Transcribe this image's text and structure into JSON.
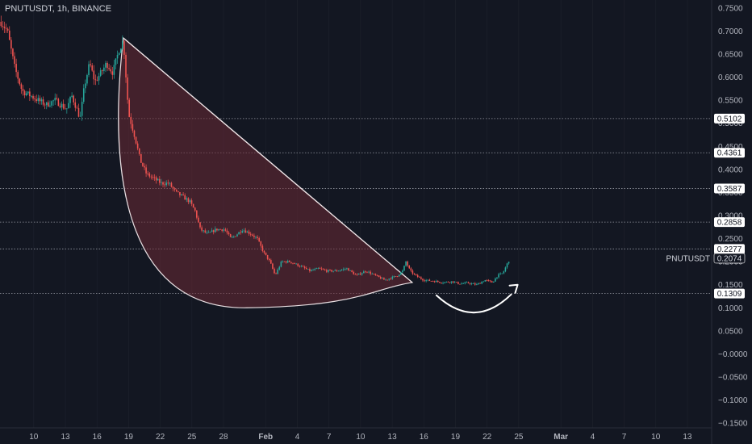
{
  "header": {
    "title": "PNUTUSDT, 1h, BINANCE"
  },
  "colors": {
    "background": "#131722",
    "up": "#26a69a",
    "down": "#ef5350",
    "cup_fill": "#6b2a35",
    "cup_stroke": "#e8dfe2",
    "grid": "#2a2e39",
    "level_line": "#9598a1"
  },
  "chart_data": {
    "type": "candlestick",
    "symbol": "PNUTUSDT",
    "interval": "1h",
    "exchange": "BINANCE",
    "y_ticks": [
      "0.7500",
      "0.7000",
      "0.6500",
      "0.6000",
      "0.5500",
      "0.5000",
      "0.4500",
      "0.4000",
      "0.3500",
      "0.3000",
      "0.2500",
      "0.2000",
      "0.1500",
      "0.1000",
      "0.0500",
      "−0.0000",
      "−0.0500",
      "−0.1000",
      "−0.1500"
    ],
    "y_tick_values": [
      0.75,
      0.7,
      0.65,
      0.6,
      0.55,
      0.5,
      0.45,
      0.4,
      0.35,
      0.3,
      0.25,
      0.2,
      0.15,
      0.1,
      0.05,
      0.0,
      -0.05,
      -0.1,
      -0.15
    ],
    "ylim": [
      -0.155,
      0.755
    ],
    "x_ticks": [
      "10",
      "13",
      "16",
      "19",
      "22",
      "25",
      "28",
      "Feb",
      "4",
      "7",
      "10",
      "13",
      "16",
      "19",
      "22",
      "25",
      "Mar",
      "4",
      "7",
      "10",
      "13"
    ],
    "x_tick_days": [
      10,
      13,
      16,
      19,
      22,
      25,
      28,
      32,
      35,
      38,
      41,
      44,
      47,
      50,
      53,
      56,
      60,
      63,
      66,
      69,
      72
    ],
    "bold_ticks": [
      "Feb",
      "Mar"
    ],
    "xlim_days": [
      6.8,
      74.3
    ],
    "horizontal_levels": [
      "0.5102",
      "0.4361",
      "0.3587",
      "0.2858",
      "0.2277",
      "0.1309"
    ],
    "last_price": {
      "symbol": "PNUTUSDT",
      "value": "0.2074"
    },
    "price_path": [
      [
        6.9,
        0.72
      ],
      [
        7.5,
        0.7
      ],
      [
        8.2,
        0.62
      ],
      [
        8.9,
        0.57
      ],
      [
        9.7,
        0.56
      ],
      [
        10.4,
        0.55
      ],
      [
        11.2,
        0.54
      ],
      [
        12.0,
        0.55
      ],
      [
        12.6,
        0.54
      ],
      [
        13.1,
        0.53
      ],
      [
        13.6,
        0.56
      ],
      [
        14.1,
        0.53
      ],
      [
        14.4,
        0.51
      ],
      [
        14.8,
        0.58
      ],
      [
        15.3,
        0.63
      ],
      [
        15.8,
        0.59
      ],
      [
        16.4,
        0.61
      ],
      [
        16.9,
        0.63
      ],
      [
        17.5,
        0.61
      ],
      [
        18.1,
        0.66
      ],
      [
        18.5,
        0.68
      ],
      [
        19.0,
        0.52
      ],
      [
        19.6,
        0.47
      ],
      [
        20.1,
        0.42
      ],
      [
        20.7,
        0.39
      ],
      [
        21.4,
        0.38
      ],
      [
        22.1,
        0.37
      ],
      [
        22.8,
        0.37
      ],
      [
        23.5,
        0.35
      ],
      [
        24.2,
        0.34
      ],
      [
        24.8,
        0.33
      ],
      [
        25.3,
        0.31
      ],
      [
        25.8,
        0.27
      ],
      [
        26.5,
        0.26
      ],
      [
        27.3,
        0.27
      ],
      [
        28.1,
        0.27
      ],
      [
        28.7,
        0.25
      ],
      [
        29.3,
        0.26
      ],
      [
        29.8,
        0.27
      ],
      [
        30.6,
        0.26
      ],
      [
        31.2,
        0.25
      ],
      [
        31.8,
        0.22
      ],
      [
        32.4,
        0.2
      ],
      [
        32.9,
        0.17
      ],
      [
        33.5,
        0.2
      ],
      [
        34.3,
        0.2
      ],
      [
        35.3,
        0.19
      ],
      [
        36.2,
        0.18
      ],
      [
        37.0,
        0.185
      ],
      [
        37.8,
        0.18
      ],
      [
        38.7,
        0.18
      ],
      [
        39.7,
        0.185
      ],
      [
        40.6,
        0.17
      ],
      [
        41.5,
        0.18
      ],
      [
        42.4,
        0.17
      ],
      [
        43.3,
        0.16
      ],
      [
        43.9,
        0.165
      ],
      [
        44.5,
        0.17
      ],
      [
        45.0,
        0.18
      ],
      [
        45.3,
        0.2
      ],
      [
        45.7,
        0.18
      ],
      [
        46.2,
        0.17
      ],
      [
        47.0,
        0.16
      ],
      [
        47.9,
        0.158
      ],
      [
        48.8,
        0.155
      ],
      [
        49.7,
        0.157
      ],
      [
        50.4,
        0.152
      ],
      [
        51.2,
        0.154
      ],
      [
        52.0,
        0.15
      ],
      [
        52.8,
        0.16
      ],
      [
        53.5,
        0.155
      ],
      [
        54.0,
        0.17
      ],
      [
        54.5,
        0.175
      ],
      [
        54.8,
        0.19
      ],
      [
        55.0,
        0.2
      ],
      [
        55.2,
        0.2074
      ]
    ],
    "annotations": [
      {
        "type": "triangle",
        "points": [
          [
            18.5,
            0.685
          ],
          [
            45.9,
            0.155
          ]
        ]
      },
      {
        "type": "cup-arc",
        "from": [
          18.5,
          0.685
        ],
        "bottom": [
          30.2,
          0.1
        ],
        "to": [
          45.9,
          0.155
        ]
      },
      {
        "type": "curved-arrow",
        "from": [
          48.2,
          0.127
        ],
        "via": [
          51.8,
          0.09
        ],
        "to": [
          55.9,
          0.15
        ]
      }
    ]
  }
}
